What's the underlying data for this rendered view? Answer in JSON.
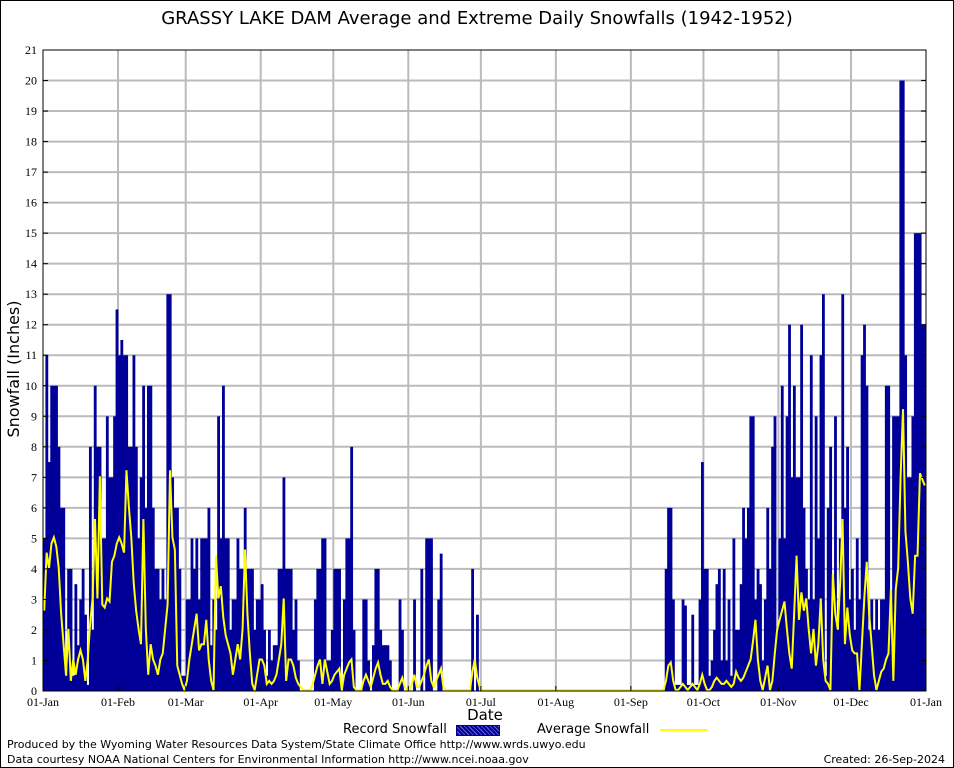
{
  "chart_data": {
    "type": "bar",
    "title": "GRASSY LAKE DAM Average and Extreme Daily Snowfalls (1942-1952)",
    "xlabel": "Date",
    "ylabel": "Snowfall (Inches)",
    "ylim": [
      0,
      21
    ],
    "yticks": [
      "0",
      "1",
      "2",
      "3",
      "4",
      "5",
      "6",
      "7",
      "8",
      "9",
      "10",
      "11",
      "12",
      "13",
      "14",
      "15",
      "16",
      "17",
      "18",
      "19",
      "20",
      "21"
    ],
    "xticks": [
      "01-Jan",
      "01-Feb",
      "01-Mar",
      "01-Apr",
      "01-May",
      "01-Jun",
      "01-Jul",
      "01-Aug",
      "01-Sep",
      "01-Oct",
      "01-Nov",
      "01-Dec",
      "01-Jan"
    ],
    "grid": true,
    "legend": {
      "placement": "bottom-center",
      "record_label": "Record Snowfall",
      "average_label": "Average Snowfall"
    },
    "colors": {
      "record": "#000099",
      "average": "#ffff00",
      "grid": "#bbbbbb"
    },
    "series": [
      {
        "name": "Record Snowfall",
        "kind": "bar",
        "months": [
          [
            5,
            11,
            7.5,
            10,
            10,
            10,
            8,
            6,
            6,
            0.5,
            4,
            4,
            0.5,
            3.5,
            1.5,
            3,
            4,
            2.5,
            0.2,
            8,
            2,
            10,
            8,
            8,
            5,
            5,
            9,
            7,
            7,
            9,
            12.5
          ],
          [
            11,
            11.5,
            11,
            11,
            8,
            8,
            11,
            8,
            5,
            7,
            10,
            6,
            10,
            10,
            6,
            4,
            4,
            3,
            4,
            3,
            13,
            13,
            7,
            6,
            6,
            4,
            0.5,
            0.5
          ],
          [
            3,
            3,
            5,
            4,
            5,
            3,
            5,
            5,
            5,
            6,
            1.5,
            3,
            2,
            9,
            5,
            10,
            5,
            5,
            2,
            3,
            3,
            5,
            4,
            4,
            6,
            4,
            4,
            4,
            2,
            3,
            3
          ],
          [
            3.5,
            2,
            0.5,
            2,
            1,
            1.5,
            1.5,
            4,
            4,
            7,
            4,
            4,
            4,
            2,
            3,
            1,
            0,
            0,
            0,
            0,
            0,
            0,
            3,
            4,
            4,
            5,
            5,
            1,
            1,
            2
          ],
          [
            4,
            4,
            4,
            0,
            3,
            5,
            5,
            8,
            2,
            0,
            0,
            0,
            3,
            3,
            1,
            0,
            1.5,
            4,
            4,
            2,
            1.5,
            1.5,
            1.5,
            1,
            0,
            0,
            0,
            3,
            2,
            0,
            0
          ],
          [
            0,
            0,
            3,
            0,
            0,
            4,
            0,
            5,
            5,
            5,
            0,
            0,
            3,
            4.5,
            0,
            0,
            0,
            0,
            0,
            0,
            0,
            0,
            0,
            0,
            0,
            0,
            4,
            0,
            2.5,
            0
          ],
          [
            0,
            0,
            0,
            0,
            0,
            0,
            0,
            0,
            0,
            0,
            0,
            0,
            0,
            0,
            0,
            0,
            0,
            0,
            0,
            0,
            0,
            0,
            0,
            0,
            0,
            0,
            0,
            0,
            0,
            0,
            0
          ],
          [
            0,
            0,
            0,
            0,
            0,
            0,
            0,
            0,
            0,
            0,
            0,
            0,
            0,
            0,
            0,
            0,
            0,
            0,
            0,
            0,
            0,
            0,
            0,
            0,
            0,
            0,
            0,
            0,
            0,
            0,
            0
          ],
          [
            0,
            0,
            0,
            0,
            0,
            0,
            0,
            0,
            0,
            0,
            0,
            0,
            0,
            0,
            4,
            6,
            6,
            3,
            0.2,
            0.2,
            0.2,
            3,
            2.8,
            0.2,
            0.2,
            2.5,
            0.2,
            0.2,
            3,
            7.5
          ],
          [
            4,
            4,
            0.5,
            1,
            2,
            3.5,
            4,
            1,
            4,
            1,
            3,
            0.5,
            5,
            2,
            2,
            3.5,
            6,
            5,
            6,
            9,
            9,
            3,
            4,
            3.5,
            1,
            3,
            6,
            4,
            8,
            9,
            2
          ],
          [
            5,
            10,
            5,
            9,
            12,
            7,
            10,
            7,
            7,
            12,
            6,
            4,
            3,
            11,
            3,
            9,
            5,
            11,
            13,
            0.5,
            6,
            8,
            3,
            9,
            2,
            5,
            13,
            6,
            8,
            3
          ],
          [
            4,
            2,
            5,
            3,
            11,
            12,
            10,
            2,
            3,
            2,
            3,
            2,
            3,
            3,
            10,
            10,
            3,
            9,
            9,
            9,
            20,
            20,
            11,
            7,
            7,
            9,
            15,
            15,
            15,
            12,
            12
          ]
        ]
      },
      {
        "name": "Average Snowfall",
        "kind": "line",
        "months": [
          [
            2.6,
            4.5,
            4,
            4.8,
            5,
            4.7,
            4,
            2.5,
            1.5,
            0.5,
            2,
            0.3,
            1,
            0.5,
            1,
            1.3,
            1,
            0.3,
            1,
            2.2,
            3,
            5.6,
            3,
            7,
            2.8,
            2.7,
            3,
            2.9,
            4.2,
            4.4,
            4.8
          ],
          [
            5,
            4.8,
            4.5,
            7.2,
            6,
            5,
            3.5,
            2.6,
            2,
            1.5,
            5.6,
            2,
            0.5,
            1.5,
            1,
            0.8,
            0.5,
            1,
            1.2,
            2,
            2.8,
            7.2,
            5,
            4.6,
            0.8,
            0.5,
            0.2,
            0
          ],
          [
            0.3,
            1,
            1.5,
            2,
            2.5,
            1.3,
            1.5,
            1.5,
            2.3,
            1,
            0.3,
            0,
            4.4,
            3,
            3.4,
            2.4,
            1.8,
            1.5,
            1.2,
            0.5,
            1,
            1.5,
            1,
            2,
            4.6,
            2.5,
            1.2,
            0.2,
            0,
            0.5,
            1
          ],
          [
            1,
            0.8,
            0.2,
            0.3,
            0.2,
            0.3,
            0.5,
            1,
            1.5,
            3,
            0.3,
            1,
            1,
            0.8,
            0.4,
            0.2,
            0.1,
            0,
            0,
            0,
            0,
            0.2,
            0.5,
            0.8,
            1,
            0.2,
            1,
            0.6,
            0.2,
            0.3
          ],
          [
            0.5,
            0.6,
            0.7,
            0,
            0.5,
            0.7,
            0.9,
            1,
            0.1,
            0,
            0,
            0,
            0.3,
            0.5,
            0.3,
            0.1,
            0.4,
            0.7,
            0.9,
            0.5,
            0.2,
            0.2,
            0.3,
            0.1,
            0,
            0,
            0,
            0.2,
            0.4,
            0.1,
            0
          ],
          [
            0,
            0.2,
            0.5,
            0.1,
            0.1,
            0.3,
            0.5,
            0.8,
            1,
            0.3,
            0.1,
            0.3,
            0.5,
            0.7,
            0.1,
            0,
            0,
            0,
            0,
            0,
            0,
            0,
            0,
            0,
            0,
            0,
            0.6,
            1,
            0.4,
            0.1
          ],
          [
            0,
            0,
            0,
            0,
            0,
            0,
            0,
            0,
            0,
            0,
            0,
            0,
            0,
            0,
            0,
            0,
            0,
            0,
            0,
            0,
            0,
            0,
            0,
            0,
            0,
            0,
            0,
            0,
            0,
            0,
            0
          ],
          [
            0,
            0,
            0,
            0,
            0,
            0,
            0,
            0,
            0,
            0,
            0,
            0,
            0,
            0,
            0,
            0,
            0,
            0,
            0,
            0,
            0,
            0,
            0,
            0,
            0,
            0,
            0,
            0,
            0,
            0,
            0
          ],
          [
            0,
            0,
            0,
            0,
            0,
            0,
            0,
            0,
            0,
            0,
            0,
            0,
            0,
            0,
            0.3,
            0.8,
            0.9,
            0.3,
            0,
            0,
            0.1,
            0.2,
            0.1,
            0,
            0.1,
            0.2,
            0.1,
            0,
            0.2,
            0.5
          ],
          [
            0.2,
            0,
            0,
            0.1,
            0.3,
            0.4,
            0.3,
            0.2,
            0.2,
            0.3,
            0.2,
            0.1,
            0.2,
            0.6,
            0.4,
            0.3,
            0.4,
            0.6,
            0.8,
            1,
            1.6,
            2.3,
            1,
            0.3,
            0,
            0.4,
            0.8,
            0,
            0.3,
            1.2,
            2
          ],
          [
            2.3,
            2.6,
            2.9,
            2,
            1.2,
            0.7,
            2.5,
            4.4,
            2.3,
            3.2,
            2.6,
            3,
            2,
            1.2,
            2,
            0.8,
            1.5,
            3,
            1,
            0.3,
            0.2,
            0,
            3.8,
            2.5,
            2,
            3.5,
            5.6,
            1.5,
            2.7,
            1.8
          ],
          [
            1.3,
            1.2,
            1.2,
            0,
            1.5,
            3,
            4.2,
            2.5,
            1.5,
            0.5,
            0,
            0.3,
            0.6,
            0.7,
            1,
            1.2,
            3.3,
            0.3,
            3.3,
            4,
            7,
            9.2,
            5.2,
            4.2,
            3,
            2.5,
            4.4,
            4.4,
            7.1,
            6.9,
            6.7
          ]
        ]
      }
    ]
  },
  "footer": {
    "produced_by": "Produced by the Wyoming Water Resources Data System/State Climate Office http://www.wrds.uwyo.edu",
    "data_courtesy": "Data courtesy NOAA National Centers for Environmental Information http://www.ncei.noaa.gov",
    "created": "Created:  26-Sep-2024"
  }
}
